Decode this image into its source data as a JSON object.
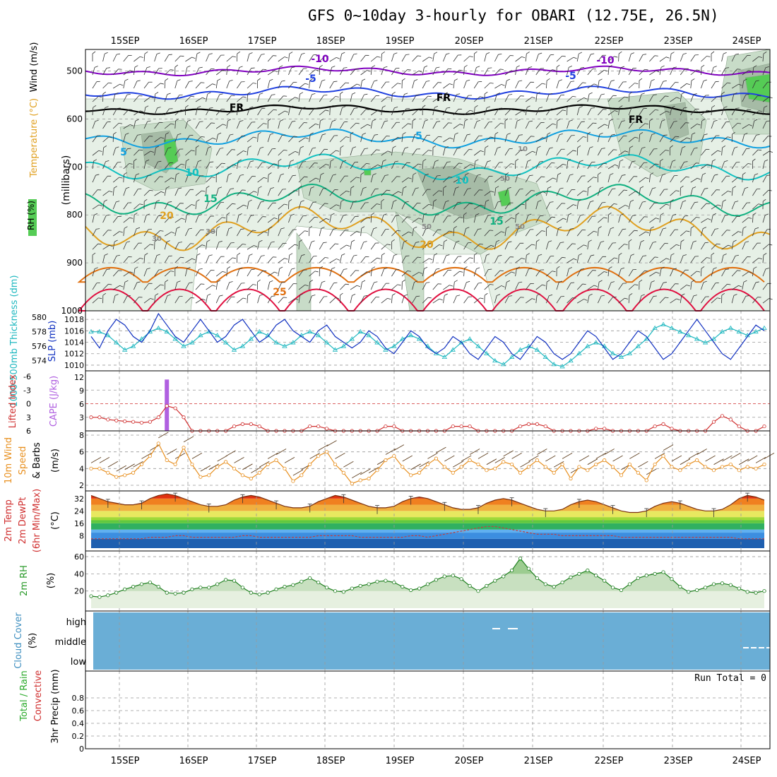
{
  "title": "GFS 0~10day 3-hourly for OBARI (12.75E, 26.5N)",
  "dates": [
    "15SEP",
    "16SEP",
    "17SEP",
    "18SEP",
    "19SEP",
    "20SEP",
    "21SEP",
    "22SEP",
    "23SEP",
    "24SEP"
  ],
  "colors": {
    "grid": "#999999",
    "rh_light": "#e6f0e6",
    "rh_mid": "#c8dcc8",
    "rh_dark": "#a6bba6",
    "rh_green": "#55cc55",
    "t_m10": "#8000c0",
    "t_m5": "#2040e0",
    "t_fr": "#000000",
    "t_5": "#10a0e0",
    "t_10": "#10c0c0",
    "t_15": "#10b080",
    "t_20": "#e0a020",
    "t_25": "#e07010",
    "t_30": "#e01040",
    "slp": "#1030c0",
    "thick": "#20b8c0",
    "li": "#d03030",
    "cape": "#b060e0",
    "wind": "#e89020",
    "barb": "#604020",
    "cloud": "#6aaed6",
    "rh2m": "#208020",
    "precip": "#000000"
  },
  "panels": {
    "upper": {
      "title_parts": [
        "Wind (m/s)",
        "Temperature (°C)",
        "RH (%)"
      ],
      "ylabel": "(millibars)",
      "yticks": [
        "500",
        "600",
        "700",
        "800",
        "900",
        "1000"
      ],
      "contour_labels": [
        "-10",
        "-10",
        "-5",
        "-5",
        "FR",
        "FR",
        "FR",
        "5",
        "5",
        "-5",
        "10",
        "10",
        "15",
        "15",
        "20",
        "20",
        "25",
        "30",
        "50",
        "50",
        "10",
        "30",
        "30",
        "50"
      ]
    },
    "slp": {
      "left_label": "1000-500mb Thickness (dm)",
      "right_label": "SLP (mb)",
      "left_ticks": [
        "580",
        "578",
        "576",
        "574"
      ],
      "right_ticks": [
        "1018",
        "1016",
        "1014",
        "1012",
        "1010"
      ]
    },
    "li": {
      "left_label": "Lifted Index",
      "right_label": "CAPE (J/kg)",
      "left_ticks": [
        "-6",
        "-3",
        "0",
        "3",
        "6"
      ],
      "right_ticks": [
        "12",
        "9",
        "6",
        "3"
      ]
    },
    "wind10": {
      "label_a": "10m Wind",
      "label_b": "Speed",
      "label_c": "& Barbs",
      "unit": "(m/s)",
      "yticks": [
        "8",
        "6",
        "4",
        "2"
      ]
    },
    "temp2m": {
      "label_a": "2m Temp",
      "label_b": "2m DewPt",
      "label_c": "(6hr Min/Max)",
      "unit": "(°C)",
      "yticks": [
        "32",
        "24",
        "16",
        "8"
      ]
    },
    "rh2m": {
      "label": "2m RH",
      "unit": "(%)",
      "yticks": [
        "60",
        "40",
        "20"
      ]
    },
    "cloud": {
      "label": "Cloud Cover",
      "unit": "(%)",
      "yticks": [
        "high",
        "middle",
        "low"
      ]
    },
    "precip": {
      "label_a": "Total / Rain",
      "label_b": "Convective",
      "label_c": "3hr Precip (mm)",
      "run_total": "Run Total = 0",
      "yticks": [
        "0.8",
        "0.6",
        "0.4",
        "0.2",
        "0"
      ]
    }
  },
  "chart_data": [
    {
      "type": "line",
      "title": "SLP (mb)",
      "ylim": [
        1009,
        1019
      ],
      "series": [
        {
          "name": "SLP (mb)",
          "values": [
            1015,
            1013,
            1016,
            1018,
            1017,
            1015,
            1014,
            1016,
            1019,
            1017,
            1015,
            1014,
            1016,
            1018,
            1016,
            1014,
            1015,
            1017,
            1018,
            1016,
            1014,
            1015,
            1017,
            1018,
            1016,
            1015,
            1014,
            1016,
            1017,
            1015,
            1014,
            1013,
            1014,
            1016,
            1015,
            1013,
            1012,
            1014,
            1016,
            1015,
            1013,
            1012,
            1013,
            1015,
            1014,
            1012,
            1011,
            1013,
            1015,
            1014,
            1012,
            1011,
            1013,
            1015,
            1014,
            1012,
            1011,
            1012,
            1014,
            1016,
            1015,
            1013,
            1011,
            1012,
            1014,
            1016,
            1015,
            1013,
            1011,
            1012,
            1014,
            1016,
            1018,
            1016,
            1014,
            1012,
            1011,
            1013,
            1015,
            1017,
            1016
          ]
        }
      ]
    },
    {
      "type": "line",
      "title": "1000-500mb Thickness (dm)",
      "ylim": [
        573,
        580.5
      ],
      "series": [
        {
          "name": "1000-500mb Thickness (dm)",
          "values": [
            578,
            578,
            577.5,
            576.5,
            575.5,
            576,
            577,
            578,
            578.5,
            578,
            577,
            576,
            576.5,
            577.5,
            578,
            577.5,
            576.5,
            575.5,
            576,
            577,
            578,
            577.5,
            576.5,
            576,
            576.5,
            577.5,
            578,
            577.5,
            576.5,
            575.5,
            576,
            577,
            578,
            577.5,
            576.5,
            575.5,
            576,
            577,
            577.5,
            577,
            576,
            575,
            574.5,
            575.5,
            576.5,
            577,
            576,
            575,
            574,
            573.5,
            574.5,
            575.5,
            576,
            575.5,
            574.5,
            573.5,
            573.2,
            574,
            575,
            576,
            576.5,
            576,
            575,
            574.5,
            575,
            576,
            577,
            578.5,
            579,
            578.5,
            578,
            577.5,
            577,
            576.5,
            577,
            578,
            578.5,
            578,
            577.5,
            578,
            578.5
          ]
        }
      ]
    },
    {
      "type": "line",
      "title": "Lifted Index",
      "ylim": [
        -6,
        6
      ],
      "series": [
        {
          "name": "Lifted Index",
          "values": [
            3,
            3,
            3.5,
            3.7,
            3.9,
            4,
            4.2,
            4,
            3,
            0.5,
            1,
            3,
            6,
            6,
            6,
            6,
            6,
            5,
            4.5,
            4.5,
            5,
            6,
            6,
            6,
            6,
            6,
            5,
            5,
            5.5,
            6,
            6,
            6,
            6,
            6,
            6,
            5,
            5,
            6,
            6,
            6,
            6,
            6,
            6,
            5,
            5,
            5,
            6,
            6,
            6,
            6,
            6,
            5,
            4.5,
            4.5,
            5,
            6,
            6,
            6,
            6,
            6,
            5.5,
            5.5,
            6,
            6,
            6,
            6,
            6,
            5,
            4.5,
            5.5,
            6,
            6,
            6,
            6,
            4,
            2.7,
            3.5,
            5,
            6,
            6,
            5
          ]
        }
      ]
    },
    {
      "type": "bar",
      "title": "CAPE (J/kg)",
      "ylim": [
        0,
        12
      ],
      "series": [
        {
          "name": "CAPE (J/kg)",
          "values": [
            0,
            0,
            0,
            0,
            0,
            0,
            0,
            0,
            0,
            11.5,
            0,
            0,
            0,
            0,
            0,
            0,
            0,
            0,
            0,
            0,
            0,
            0,
            0,
            0,
            0,
            0,
            0,
            0,
            0,
            0,
            0,
            0,
            0,
            0,
            0,
            0,
            0,
            0,
            0,
            0,
            0,
            0,
            0,
            0,
            0,
            0,
            0,
            0,
            0,
            0,
            0,
            0,
            0,
            0,
            0,
            0,
            0,
            0,
            0,
            0,
            0,
            0,
            0,
            0,
            0,
            0,
            0,
            0,
            0,
            0,
            0,
            0,
            0,
            0,
            0,
            0,
            0,
            0,
            0,
            0,
            0
          ]
        }
      ]
    },
    {
      "type": "line",
      "title": "10m Wind Speed (m/s)",
      "ylim": [
        2,
        8
      ],
      "series": [
        {
          "name": "10m Wind Speed",
          "values": [
            4,
            4,
            3.5,
            3,
            3.2,
            3.5,
            4.5,
            5.5,
            7,
            5,
            4.5,
            6.5,
            4.5,
            3,
            3.2,
            4.2,
            4.8,
            4,
            3.2,
            2.8,
            3.5,
            4.5,
            5,
            4,
            2.5,
            3.2,
            4.5,
            5.5,
            6,
            4.5,
            3.5,
            2.2,
            2.6,
            2.8,
            3.8,
            5,
            5.5,
            4.2,
            3.2,
            3.5,
            4.5,
            5.2,
            4.2,
            3.5,
            4.2,
            5,
            4.5,
            3.8,
            4,
            4.8,
            4.5,
            3.5,
            4.2,
            5,
            4.2,
            3.5,
            4.5,
            2.8,
            4.2,
            3.8,
            4.5,
            5,
            4.2,
            3.2,
            4.5,
            3.5,
            2.6,
            4.5,
            5.5,
            4.2,
            3.8,
            4.5,
            5,
            4.2,
            3.8,
            4.2,
            4.5,
            3.8,
            4.2,
            4,
            4.5
          ]
        }
      ]
    },
    {
      "type": "area",
      "title": "2m Temp (°C)",
      "ylim": [
        0,
        36
      ],
      "series": [
        {
          "name": "2m Temp",
          "values": [
            34,
            32,
            30,
            29,
            28,
            28,
            29,
            32,
            34,
            35,
            34,
            32,
            30,
            28,
            27,
            27,
            28,
            31,
            33,
            34,
            33,
            31,
            29,
            27,
            26,
            26,
            27,
            30,
            32,
            34,
            33,
            31,
            29,
            27,
            26,
            26,
            27,
            30,
            32,
            33,
            32,
            30,
            28,
            26,
            25,
            25,
            26,
            29,
            31,
            32,
            31,
            29,
            27,
            25,
            24,
            24,
            25,
            28,
            30,
            31,
            30,
            28,
            26,
            24,
            23,
            23,
            24,
            27,
            29,
            30,
            29,
            27,
            25,
            24,
            24,
            25,
            28,
            32,
            34,
            33,
            31
          ]
        },
        {
          "name": "2m DewPt",
          "values": [
            6,
            6,
            6,
            6,
            6,
            6,
            6,
            7,
            7,
            7,
            8,
            8,
            7,
            7,
            7,
            7,
            7,
            7,
            8,
            8,
            7,
            7,
            7,
            7,
            7,
            7,
            7,
            8,
            8,
            8,
            8,
            8,
            7,
            7,
            7,
            7,
            7,
            7,
            8,
            8,
            7,
            8,
            9,
            10,
            11,
            12,
            13,
            14,
            14,
            13,
            12,
            11,
            10,
            9,
            9,
            9,
            8,
            8,
            8,
            8,
            8,
            8,
            8,
            7,
            7,
            7,
            7,
            7,
            7,
            7,
            7,
            7,
            7,
            7,
            7,
            7,
            7,
            6,
            6,
            6,
            6
          ]
        }
      ]
    },
    {
      "type": "area",
      "title": "2m RH (%)",
      "ylim": [
        0,
        65
      ],
      "series": [
        {
          "name": "2m RH",
          "values": [
            14,
            13,
            15,
            18,
            22,
            25,
            28,
            30,
            25,
            18,
            17,
            18,
            22,
            24,
            24,
            28,
            33,
            32,
            24,
            18,
            16,
            18,
            22,
            25,
            27,
            31,
            35,
            30,
            24,
            20,
            19,
            23,
            26,
            28,
            31,
            32,
            30,
            25,
            21,
            23,
            28,
            33,
            37,
            38,
            34,
            26,
            20,
            26,
            32,
            37,
            44,
            58,
            46,
            35,
            28,
            25,
            30,
            36,
            40,
            44,
            38,
            32,
            24,
            21,
            28,
            35,
            38,
            40,
            42,
            34,
            25,
            19,
            21,
            24,
            28,
            29,
            27,
            23,
            19,
            18,
            20
          ]
        }
      ]
    },
    {
      "type": "bar",
      "title": "3hr Precip (mm)",
      "ylim": [
        0,
        1
      ],
      "series": [
        {
          "name": "Total / Rain",
          "values": [
            0,
            0,
            0,
            0,
            0,
            0,
            0,
            0,
            0,
            0,
            0,
            0,
            0,
            0,
            0,
            0,
            0,
            0,
            0,
            0,
            0,
            0,
            0,
            0,
            0,
            0,
            0,
            0,
            0,
            0,
            0,
            0,
            0,
            0,
            0,
            0,
            0,
            0,
            0,
            0,
            0,
            0,
            0,
            0,
            0,
            0,
            0,
            0,
            0,
            0,
            0,
            0,
            0,
            0,
            0,
            0,
            0,
            0,
            0,
            0,
            0,
            0,
            0,
            0,
            0,
            0,
            0,
            0,
            0,
            0,
            0,
            0,
            0,
            0,
            0,
            0,
            0,
            0,
            0,
            0,
            0
          ]
        }
      ]
    }
  ]
}
